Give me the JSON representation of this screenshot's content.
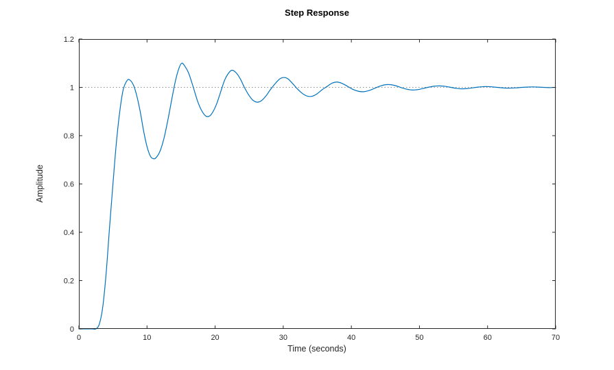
{
  "figure": {
    "background": "#ffffff"
  },
  "chart_data": {
    "type": "line",
    "title": "Step Response",
    "xlabel": "Time (seconds)",
    "ylabel": "Amplitude",
    "xlim": [
      0,
      70
    ],
    "ylim": [
      0,
      1.2
    ],
    "xticks": [
      0,
      10,
      20,
      30,
      40,
      50,
      60,
      70
    ],
    "xtick_labels": [
      "0",
      "10",
      "20",
      "30",
      "40",
      "50",
      "60",
      "70"
    ],
    "yticks": [
      0,
      0.2,
      0.4,
      0.6,
      0.8,
      1,
      1.2
    ],
    "ytick_labels": [
      "0",
      "0.2",
      "0.4",
      "0.6",
      "0.8",
      "1",
      "1.2"
    ],
    "grid": false,
    "box": true,
    "legend": null,
    "axis_color": "#262626",
    "tick_label_color": "#262626",
    "reference_line": {
      "y": 1,
      "style": "dotted",
      "color": "#8c8c8c"
    },
    "series": [
      {
        "name": "step-response",
        "color": "#0072BD",
        "points": [
          [
            0,
            0
          ],
          [
            1,
            0
          ],
          [
            2,
            0
          ],
          [
            2.5,
            0
          ],
          [
            3,
            0.02
          ],
          [
            3.5,
            0.09
          ],
          [
            4,
            0.23
          ],
          [
            4.5,
            0.42
          ],
          [
            5,
            0.6
          ],
          [
            5.5,
            0.77
          ],
          [
            6,
            0.9
          ],
          [
            6.5,
            0.99
          ],
          [
            7,
            1.025
          ],
          [
            7.4,
            1.032
          ],
          [
            8,
            1.01
          ],
          [
            8.5,
            0.965
          ],
          [
            9,
            0.9
          ],
          [
            9.5,
            0.82
          ],
          [
            10,
            0.755
          ],
          [
            10.5,
            0.715
          ],
          [
            10.9,
            0.705
          ],
          [
            11.3,
            0.708
          ],
          [
            11.9,
            0.735
          ],
          [
            12.5,
            0.79
          ],
          [
            13.1,
            0.87
          ],
          [
            13.7,
            0.96
          ],
          [
            14.2,
            1.03
          ],
          [
            14.7,
            1.08
          ],
          [
            15.1,
            1.1
          ],
          [
            15.5,
            1.09
          ],
          [
            16.1,
            1.06
          ],
          [
            16.8,
            1.0
          ],
          [
            17.4,
            0.945
          ],
          [
            18,
            0.905
          ],
          [
            18.6,
            0.882
          ],
          [
            19.1,
            0.88
          ],
          [
            19.6,
            0.895
          ],
          [
            20.2,
            0.93
          ],
          [
            20.8,
            0.98
          ],
          [
            21.4,
            1.03
          ],
          [
            22,
            1.06
          ],
          [
            22.5,
            1.071
          ],
          [
            23.1,
            1.06
          ],
          [
            23.7,
            1.035
          ],
          [
            24.3,
            1.0
          ],
          [
            24.9,
            0.97
          ],
          [
            25.5,
            0.948
          ],
          [
            26.1,
            0.939
          ],
          [
            26.7,
            0.943
          ],
          [
            27.4,
            0.962
          ],
          [
            28.1,
            0.99
          ],
          [
            28.8,
            1.015
          ],
          [
            29.5,
            1.035
          ],
          [
            30.1,
            1.041
          ],
          [
            30.7,
            1.035
          ],
          [
            31.4,
            1.015
          ],
          [
            32.1,
            0.993
          ],
          [
            32.8,
            0.975
          ],
          [
            33.5,
            0.964
          ],
          [
            34.2,
            0.963
          ],
          [
            34.9,
            0.972
          ],
          [
            35.7,
            0.99
          ],
          [
            36.5,
            1.005
          ],
          [
            37.2,
            1.018
          ],
          [
            37.9,
            1.022
          ],
          [
            38.6,
            1.017
          ],
          [
            39.4,
            1.005
          ],
          [
            40.2,
            0.992
          ],
          [
            41,
            0.984
          ],
          [
            41.8,
            0.982
          ],
          [
            42.6,
            0.987
          ],
          [
            43.4,
            0.996
          ],
          [
            44.2,
            1.005
          ],
          [
            45,
            1.011
          ],
          [
            45.8,
            1.011
          ],
          [
            46.6,
            1.006
          ],
          [
            47.4,
            0.998
          ],
          [
            48.2,
            0.992
          ],
          [
            49,
            0.989
          ],
          [
            49.8,
            0.991
          ],
          [
            50.6,
            0.996
          ],
          [
            51.4,
            1.001
          ],
          [
            52.2,
            1.005
          ],
          [
            53,
            1.006
          ],
          [
            53.8,
            1.004
          ],
          [
            54.6,
            1.0
          ],
          [
            55.4,
            0.996
          ],
          [
            56.2,
            0.994
          ],
          [
            57,
            0.995
          ],
          [
            57.8,
            0.998
          ],
          [
            58.6,
            1.001
          ],
          [
            59.4,
            1.003
          ],
          [
            60.2,
            1.003
          ],
          [
            61,
            1.001
          ],
          [
            61.8,
            0.999
          ],
          [
            62.6,
            0.997
          ],
          [
            63.4,
            0.997
          ],
          [
            64.2,
            0.998
          ],
          [
            65,
            1.0
          ],
          [
            65.8,
            1.001
          ],
          [
            66.6,
            1.002
          ],
          [
            67.4,
            1.001
          ],
          [
            68.2,
            1.0
          ],
          [
            69,
            0.999
          ],
          [
            70,
            1.0
          ]
        ]
      }
    ]
  }
}
